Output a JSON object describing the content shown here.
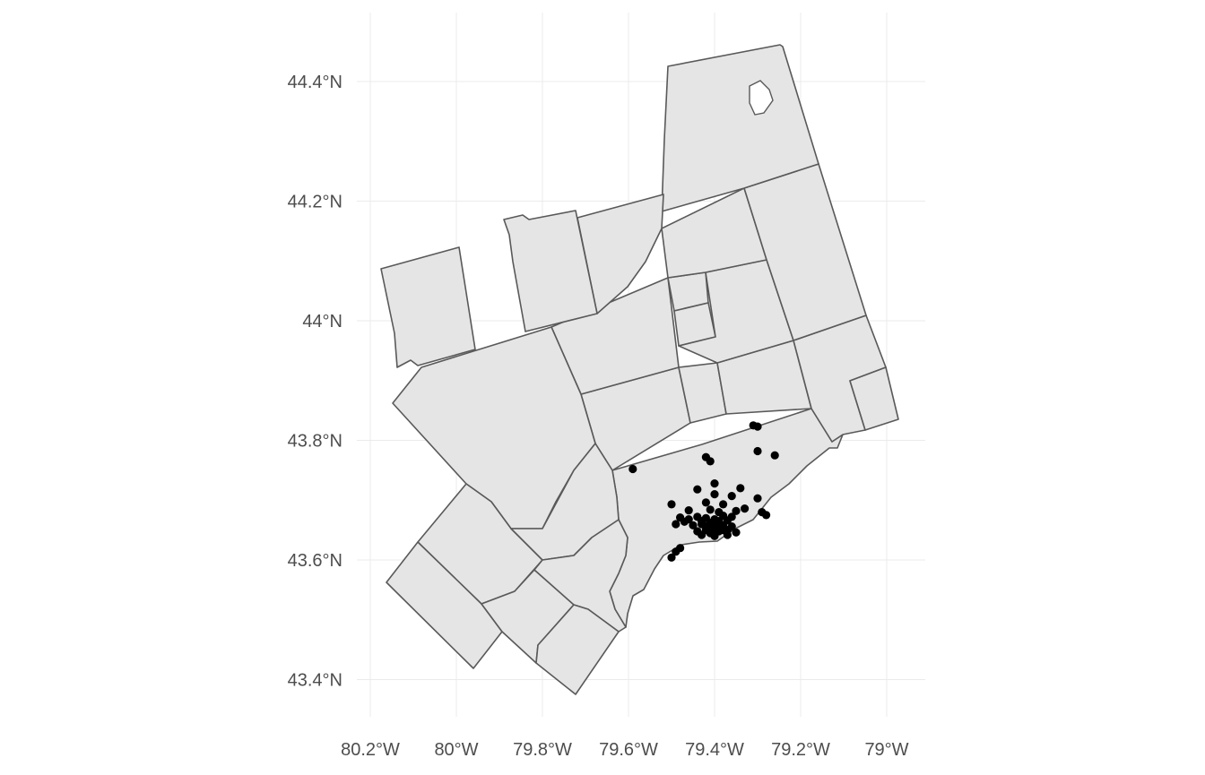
{
  "map": {
    "x_ticks": [
      {
        "value": -80.2,
        "label": "80.2°W"
      },
      {
        "value": -80.0,
        "label": "80°W"
      },
      {
        "value": -79.8,
        "label": "79.8°W"
      },
      {
        "value": -79.6,
        "label": "79.6°W"
      },
      {
        "value": -79.4,
        "label": "79.4°W"
      },
      {
        "value": -79.2,
        "label": "79.2°W"
      },
      {
        "value": -79.0,
        "label": "79°W"
      }
    ],
    "y_ticks": [
      {
        "value": 43.4,
        "label": "43.4°N"
      },
      {
        "value": 43.6,
        "label": "43.6°N"
      },
      {
        "value": 43.8,
        "label": "43.8°N"
      },
      {
        "value": 44.0,
        "label": "44°N"
      },
      {
        "value": 44.2,
        "label": "44.2°N"
      },
      {
        "value": 44.4,
        "label": "44.4°N"
      }
    ],
    "xlim": [
      -80.2,
      -78.9
    ],
    "ylim": [
      43.33,
      44.51
    ],
    "colors": {
      "fill": "#e5e5e5",
      "border": "#595959",
      "point": "#000000",
      "grid": "#ebebeb"
    },
    "points": [
      [
        -79.59,
        43.752
      ],
      [
        -79.3,
        43.823
      ],
      [
        -79.31,
        43.825
      ],
      [
        -79.3,
        43.782
      ],
      [
        -79.26,
        43.775
      ],
      [
        -79.42,
        43.772
      ],
      [
        -79.41,
        43.765
      ],
      [
        -79.4,
        43.728
      ],
      [
        -79.44,
        43.718
      ],
      [
        -79.34,
        43.72
      ],
      [
        -79.36,
        43.707
      ],
      [
        -79.4,
        43.71
      ],
      [
        -79.3,
        43.703
      ],
      [
        -79.5,
        43.693
      ],
      [
        -79.42,
        43.696
      ],
      [
        -79.38,
        43.693
      ],
      [
        -79.33,
        43.686
      ],
      [
        -79.29,
        43.68
      ],
      [
        -79.28,
        43.675
      ],
      [
        -79.35,
        43.682
      ],
      [
        -79.46,
        43.683
      ],
      [
        -79.48,
        43.671
      ],
      [
        -79.47,
        43.664
      ],
      [
        -79.49,
        43.66
      ],
      [
        -79.44,
        43.672
      ],
      [
        -79.42,
        43.67
      ],
      [
        -79.4,
        43.668
      ],
      [
        -79.39,
        43.665
      ],
      [
        -79.41,
        43.662
      ],
      [
        -79.43,
        43.66
      ],
      [
        -79.45,
        43.658
      ],
      [
        -79.37,
        43.666
      ],
      [
        -79.36,
        43.672
      ],
      [
        -79.38,
        43.658
      ],
      [
        -79.4,
        43.655
      ],
      [
        -79.42,
        43.65
      ],
      [
        -79.39,
        43.648
      ],
      [
        -79.41,
        43.645
      ],
      [
        -79.38,
        43.65
      ],
      [
        -79.36,
        43.656
      ],
      [
        -79.44,
        43.648
      ],
      [
        -79.35,
        43.646
      ],
      [
        -79.37,
        43.642
      ],
      [
        -79.4,
        43.64
      ],
      [
        -79.43,
        43.642
      ],
      [
        -79.39,
        43.68
      ],
      [
        -79.41,
        43.684
      ],
      [
        -79.46,
        43.668
      ],
      [
        -79.38,
        43.674
      ],
      [
        -79.4,
        43.646
      ],
      [
        -79.42,
        43.656
      ],
      [
        -79.39,
        43.66
      ],
      [
        -79.41,
        43.652
      ],
      [
        -79.37,
        43.65
      ],
      [
        -79.43,
        43.665
      ],
      [
        -79.4,
        43.662
      ],
      [
        -79.48,
        43.62
      ],
      [
        -79.49,
        43.614
      ],
      [
        -79.5,
        43.604
      ]
    ]
  }
}
